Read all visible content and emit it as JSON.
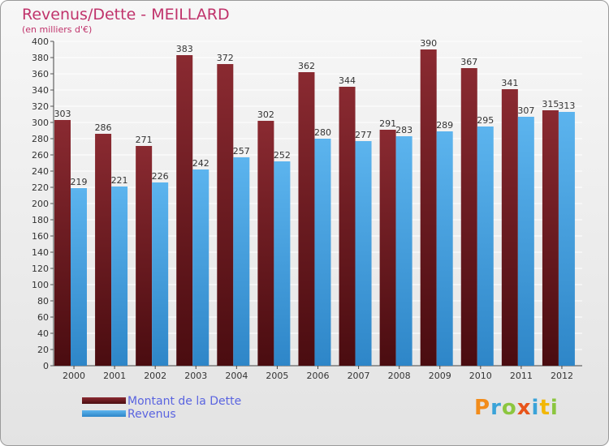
{
  "header": {
    "title": "Revenus/Dette - MEILLARD",
    "subtitle": "(en milliers d'€)"
  },
  "chart_data": {
    "type": "bar",
    "title": "Revenus/Dette - MEILLARD",
    "subtitle": "(en milliers d'€)",
    "categories": [
      "2000",
      "2001",
      "2002",
      "2003",
      "2004",
      "2005",
      "2006",
      "2007",
      "2008",
      "2009",
      "2010",
      "2011",
      "2012"
    ],
    "series": [
      {
        "name": "Montant de la Dette",
        "color": "#7a1f26",
        "values": [
          303,
          286,
          271,
          383,
          372,
          302,
          362,
          344,
          291,
          390,
          367,
          341,
          315
        ]
      },
      {
        "name": "Revenus",
        "color": "#4aa6e6",
        "values": [
          219,
          221,
          226,
          242,
          257,
          252,
          280,
          277,
          283,
          289,
          295,
          307,
          313
        ]
      }
    ],
    "ylim": [
      0,
      400
    ],
    "ytick_step": 20,
    "grid": true,
    "legend_position": "bottom-left"
  },
  "legend": {
    "items": [
      {
        "label": "Montant de la Dette",
        "color": "#7a1f26"
      },
      {
        "label": "Revenus",
        "color": "#4aa6e6"
      }
    ]
  },
  "logo": {
    "text": "Proxiti",
    "colors": [
      "#f28c1b",
      "#3aa3d8",
      "#8cc63f",
      "#e8541a",
      "#3aa3d8",
      "#f2b705",
      "#8cc63f"
    ]
  }
}
